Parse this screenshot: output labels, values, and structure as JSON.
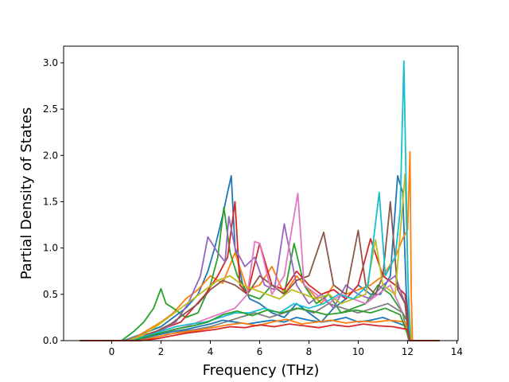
{
  "chart_data": {
    "type": "line",
    "title": "",
    "xlabel": "Frequency (THz)",
    "ylabel": "Partial Density of States",
    "xlim": [
      -1.95,
      14.05
    ],
    "ylim": [
      0.0,
      3.18
    ],
    "x_ticks": [
      0,
      2,
      4,
      6,
      8,
      10,
      12,
      14
    ],
    "y_ticks": [
      0.0,
      0.5,
      1.0,
      1.5,
      2.0,
      2.5,
      3.0
    ],
    "x_tick_labels": [
      "0",
      "2",
      "4",
      "6",
      "8",
      "10",
      "12",
      "14"
    ],
    "y_tick_labels": [
      "0.0",
      "0.5",
      "1.0",
      "1.5",
      "2.0",
      "2.5",
      "3.0"
    ],
    "grid": false,
    "legend": "none",
    "series_colors": [
      "#1f77b4",
      "#ff7f0e",
      "#2ca02c",
      "#d62728",
      "#9467bd",
      "#8c564b",
      "#e377c2",
      "#7f7f7f",
      "#bcbd22",
      "#17becf"
    ],
    "series": [
      {
        "x": [
          -1.3,
          0.5,
          1.0,
          1.5,
          2.0,
          2.5,
          3.0,
          3.5,
          3.9,
          4.2,
          4.5,
          4.7,
          4.85,
          5.0,
          5.3,
          5.6,
          6.0,
          6.5,
          7.0,
          7.5,
          8.0,
          8.5,
          9.0,
          9.5,
          10.0,
          10.5,
          10.9,
          11.3,
          11.6,
          11.8,
          11.95,
          12.1,
          13.3
        ],
        "y": [
          0.0,
          0.0,
          0.05,
          0.1,
          0.15,
          0.25,
          0.35,
          0.5,
          0.75,
          1.02,
          1.35,
          1.6,
          1.78,
          1.0,
          0.62,
          0.45,
          0.4,
          0.3,
          0.25,
          0.4,
          0.3,
          0.2,
          0.35,
          0.45,
          0.6,
          0.5,
          0.5,
          0.7,
          1.78,
          1.6,
          0.5,
          0.0,
          0.0
        ]
      },
      {
        "x": [
          -1.3,
          0.6,
          1.0,
          1.5,
          2.0,
          2.5,
          3.0,
          3.5,
          4.0,
          4.5,
          5.0,
          5.5,
          6.0,
          6.5,
          7.0,
          7.5,
          8.0,
          8.5,
          9.0,
          9.5,
          10.0,
          10.5,
          11.0,
          11.5,
          11.8,
          12.0,
          12.1,
          12.15,
          12.2,
          13.3
        ],
        "y": [
          0.0,
          0.0,
          0.04,
          0.12,
          0.2,
          0.3,
          0.45,
          0.55,
          0.7,
          0.62,
          0.95,
          0.55,
          0.6,
          0.8,
          0.5,
          0.7,
          0.55,
          0.4,
          0.6,
          0.5,
          0.55,
          0.6,
          0.7,
          0.9,
          1.1,
          1.2,
          2.04,
          0.5,
          0.0,
          0.0
        ]
      },
      {
        "x": [
          -1.3,
          0.4,
          0.9,
          1.3,
          1.7,
          2.0,
          2.2,
          2.5,
          3.0,
          3.5,
          4.0,
          4.3,
          4.55,
          4.8,
          5.1,
          5.5,
          6.0,
          6.5,
          7.0,
          7.4,
          7.8,
          8.3,
          8.8,
          9.3,
          9.8,
          10.3,
          10.8,
          11.3,
          11.8,
          12.0,
          12.1,
          13.3
        ],
        "y": [
          0.0,
          0.0,
          0.1,
          0.2,
          0.35,
          0.56,
          0.4,
          0.35,
          0.25,
          0.3,
          0.6,
          0.9,
          1.44,
          0.95,
          0.7,
          0.5,
          0.45,
          0.6,
          0.5,
          1.05,
          0.6,
          0.4,
          0.5,
          0.3,
          0.35,
          0.4,
          0.6,
          0.5,
          0.3,
          0.2,
          0.0,
          0.0
        ]
      },
      {
        "x": [
          -1.3,
          0.7,
          1.2,
          1.8,
          2.3,
          2.8,
          3.3,
          3.8,
          4.3,
          4.7,
          5.0,
          5.2,
          5.5,
          6.0,
          6.5,
          7.0,
          7.5,
          8.0,
          8.5,
          9.0,
          9.5,
          10.0,
          10.5,
          11.0,
          11.5,
          11.9,
          12.1,
          13.3
        ],
        "y": [
          0.0,
          0.0,
          0.05,
          0.1,
          0.15,
          0.2,
          0.35,
          0.5,
          0.7,
          0.9,
          1.5,
          0.6,
          0.5,
          1.05,
          0.6,
          0.55,
          0.75,
          0.6,
          0.5,
          0.55,
          0.45,
          0.6,
          1.1,
          0.7,
          0.6,
          0.5,
          0.0,
          0.0
        ]
      },
      {
        "x": [
          -1.3,
          0.6,
          1.1,
          1.6,
          2.1,
          2.6,
          3.1,
          3.6,
          3.9,
          4.3,
          4.6,
          4.75,
          5.0,
          5.4,
          5.8,
          6.2,
          6.6,
          7.0,
          7.5,
          8.0,
          8.5,
          9.0,
          9.5,
          10.0,
          10.5,
          11.0,
          11.5,
          11.9,
          12.05,
          13.3
        ],
        "y": [
          0.0,
          0.0,
          0.03,
          0.08,
          0.12,
          0.2,
          0.4,
          0.7,
          1.12,
          0.95,
          0.85,
          1.34,
          1.0,
          0.8,
          0.9,
          0.6,
          0.55,
          1.26,
          0.6,
          0.4,
          0.5,
          0.35,
          0.6,
          0.5,
          0.45,
          0.6,
          0.7,
          0.4,
          0.0,
          0.0
        ]
      },
      {
        "x": [
          -1.3,
          0.8,
          1.3,
          1.8,
          2.4,
          3.0,
          3.5,
          4.0,
          4.5,
          5.0,
          5.5,
          6.0,
          6.5,
          7.0,
          7.5,
          8.0,
          8.6,
          9.0,
          9.5,
          10.0,
          10.3,
          10.7,
          11.0,
          11.3,
          11.6,
          11.9,
          12.05,
          13.3
        ],
        "y": [
          0.0,
          0.0,
          0.04,
          0.1,
          0.18,
          0.3,
          0.4,
          0.55,
          0.65,
          0.6,
          0.5,
          0.7,
          0.6,
          0.5,
          0.65,
          0.7,
          1.17,
          0.6,
          0.5,
          1.19,
          0.6,
          0.5,
          0.7,
          1.5,
          0.55,
          0.4,
          0.0,
          0.0
        ]
      },
      {
        "x": [
          -1.3,
          0.9,
          1.5,
          2.0,
          2.5,
          3.0,
          3.5,
          4.0,
          4.5,
          5.0,
          5.5,
          5.8,
          6.0,
          6.5,
          7.0,
          7.3,
          7.55,
          7.8,
          8.3,
          8.8,
          9.3,
          9.8,
          10.3,
          10.8,
          11.3,
          11.8,
          12.05,
          13.3
        ],
        "y": [
          0.0,
          0.0,
          0.05,
          0.08,
          0.12,
          0.15,
          0.2,
          0.25,
          0.3,
          0.35,
          0.5,
          1.07,
          1.05,
          0.5,
          0.7,
          1.2,
          1.59,
          0.6,
          0.5,
          0.4,
          0.5,
          0.45,
          0.4,
          0.5,
          0.6,
          0.3,
          0.0,
          0.0
        ]
      },
      {
        "x": [
          -1.3,
          1.0,
          1.6,
          2.2,
          2.8,
          3.4,
          4.0,
          4.6,
          5.2,
          5.8,
          6.4,
          7.0,
          7.6,
          8.2,
          8.8,
          9.4,
          10.0,
          10.6,
          11.2,
          11.8,
          12.05,
          13.3
        ],
        "y": [
          0.0,
          0.0,
          0.03,
          0.06,
          0.1,
          0.12,
          0.15,
          0.2,
          0.25,
          0.3,
          0.25,
          0.3,
          0.35,
          0.3,
          0.4,
          0.35,
          0.3,
          0.35,
          0.4,
          0.3,
          0.0,
          0.0
        ]
      },
      {
        "x": [
          -1.3,
          0.7,
          1.2,
          1.8,
          2.3,
          2.8,
          3.3,
          3.8,
          4.3,
          4.8,
          5.3,
          5.8,
          6.3,
          6.8,
          7.3,
          7.8,
          8.3,
          8.8,
          9.3,
          9.8,
          10.3,
          10.7,
          11.0,
          11.5,
          11.9,
          12.05,
          12.15,
          13.3
        ],
        "y": [
          0.0,
          0.0,
          0.05,
          0.15,
          0.25,
          0.35,
          0.45,
          0.55,
          0.65,
          0.7,
          0.6,
          0.55,
          0.5,
          0.45,
          0.55,
          0.5,
          0.45,
          0.5,
          0.4,
          0.45,
          0.5,
          1.09,
          0.6,
          0.5,
          1.8,
          0.4,
          0.0,
          0.0
        ]
      },
      {
        "x": [
          -1.3,
          0.8,
          1.4,
          2.0,
          2.6,
          3.2,
          3.8,
          4.4,
          5.0,
          5.6,
          6.2,
          6.8,
          7.4,
          8.0,
          8.6,
          9.2,
          9.8,
          10.4,
          10.85,
          11.1,
          11.5,
          11.7,
          11.85,
          11.92,
          12.0,
          12.1,
          13.3
        ],
        "y": [
          0.0,
          0.0,
          0.05,
          0.1,
          0.15,
          0.18,
          0.2,
          0.25,
          0.3,
          0.3,
          0.35,
          0.3,
          0.4,
          0.35,
          0.4,
          0.5,
          0.45,
          0.6,
          1.6,
          0.7,
          0.9,
          1.4,
          3.02,
          2.0,
          0.8,
          0.0,
          0.0
        ]
      },
      {
        "x": [
          -1.3,
          1.0,
          1.5,
          2.0,
          2.5,
          3.0,
          3.5,
          4.0,
          4.5,
          5.0,
          5.5,
          6.0,
          6.5,
          7.0,
          7.5,
          8.0,
          8.5,
          9.0,
          9.5,
          10.0,
          10.5,
          11.0,
          11.5,
          12.0,
          12.1,
          13.3
        ],
        "y": [
          0.0,
          0.0,
          0.04,
          0.07,
          0.1,
          0.12,
          0.15,
          0.18,
          0.22,
          0.2,
          0.18,
          0.2,
          0.22,
          0.2,
          0.25,
          0.22,
          0.2,
          0.22,
          0.25,
          0.2,
          0.22,
          0.25,
          0.2,
          0.15,
          0.0,
          0.0
        ]
      },
      {
        "x": [
          -1.3,
          1.1,
          1.7,
          2.3,
          2.9,
          3.5,
          4.1,
          4.7,
          5.3,
          5.9,
          6.5,
          7.1,
          7.7,
          8.3,
          8.9,
          9.5,
          10.1,
          10.7,
          11.3,
          11.9,
          12.1,
          13.3
        ],
        "y": [
          0.0,
          0.0,
          0.03,
          0.07,
          0.09,
          0.11,
          0.14,
          0.17,
          0.19,
          0.16,
          0.2,
          0.23,
          0.18,
          0.2,
          0.22,
          0.19,
          0.21,
          0.2,
          0.22,
          0.2,
          0.0,
          0.0
        ]
      },
      {
        "x": [
          -1.3,
          0.9,
          1.5,
          2.1,
          2.7,
          3.3,
          3.9,
          4.5,
          5.1,
          5.7,
          6.3,
          6.9,
          7.5,
          8.1,
          8.7,
          9.3,
          9.9,
          10.5,
          11.1,
          11.7,
          12.1,
          13.3
        ],
        "y": [
          0.0,
          0.0,
          0.05,
          0.09,
          0.13,
          0.16,
          0.2,
          0.28,
          0.32,
          0.27,
          0.33,
          0.3,
          0.35,
          0.32,
          0.28,
          0.3,
          0.33,
          0.3,
          0.35,
          0.28,
          0.0,
          0.0
        ]
      },
      {
        "x": [
          -1.3,
          1.2,
          1.8,
          2.4,
          3.0,
          3.6,
          4.2,
          4.8,
          5.4,
          6.0,
          6.6,
          7.2,
          7.8,
          8.4,
          9.0,
          9.6,
          10.2,
          10.8,
          11.4,
          12.0,
          12.1,
          13.3
        ],
        "y": [
          0.0,
          0.0,
          0.02,
          0.05,
          0.08,
          0.1,
          0.12,
          0.15,
          0.14,
          0.17,
          0.15,
          0.18,
          0.16,
          0.14,
          0.17,
          0.15,
          0.18,
          0.16,
          0.15,
          0.12,
          0.0,
          0.0
        ]
      }
    ]
  }
}
